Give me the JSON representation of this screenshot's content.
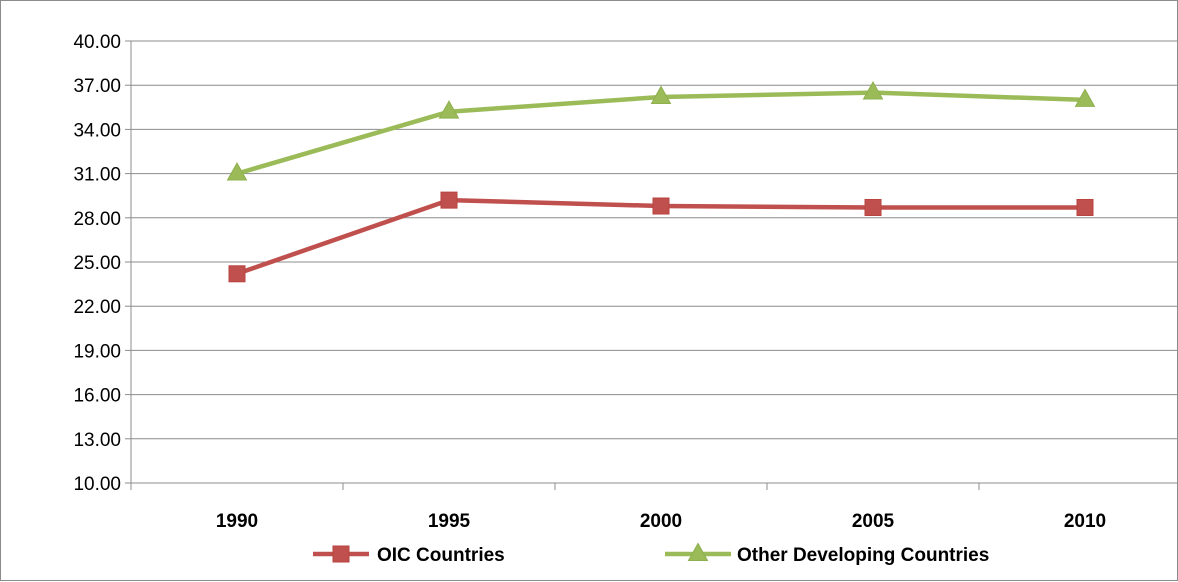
{
  "chart_data": {
    "type": "line",
    "categories": [
      "1990",
      "1995",
      "2000",
      "2005",
      "2010"
    ],
    "series": [
      {
        "name": "OIC Countries",
        "values": [
          24.2,
          29.2,
          28.8,
          28.7,
          28.7
        ],
        "color": "#c0504d",
        "marker": "square"
      },
      {
        "name": "Other Developing Countries",
        "values": [
          31.0,
          35.2,
          36.2,
          36.5,
          36.0
        ],
        "color": "#9bbb59",
        "marker": "triangle"
      }
    ],
    "ylim": [
      10,
      40
    ],
    "yticks": [
      "10.00",
      "13.00",
      "16.00",
      "19.00",
      "22.00",
      "25.00",
      "28.00",
      "31.00",
      "34.00",
      "37.00",
      "40.00"
    ],
    "grid": "horizontal",
    "legend_position": "bottom"
  }
}
